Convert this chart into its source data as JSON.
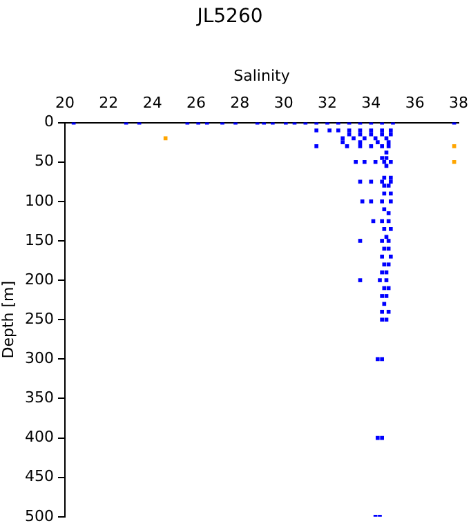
{
  "chart_data": {
    "type": "scatter",
    "title": "JL5260",
    "xlabel": "Salinity",
    "ylabel": "Depth [m]",
    "xlim": [
      20,
      38
    ],
    "xticks": [
      20,
      22,
      24,
      26,
      28,
      30,
      32,
      34,
      36,
      38
    ],
    "ylim": [
      500,
      0
    ],
    "yticks": [
      0,
      50,
      100,
      150,
      200,
      250,
      300,
      350,
      400,
      450,
      500
    ],
    "grid": false,
    "legend": false,
    "marker": "square",
    "series": [
      {
        "color": "#0000ff",
        "x": [
          20.4,
          22.8,
          23.4,
          25.6,
          26.1,
          26.5,
          27.2,
          27.8,
          28.8,
          29.1,
          29.5,
          30.1,
          30.5,
          31.0,
          31.5,
          32.0,
          32.5,
          33.0,
          33.5,
          34.0,
          34.5,
          35.0,
          37.8,
          31.5,
          32.1,
          32.5,
          33.0,
          33.5,
          34.0,
          34.5,
          34.9,
          33.0,
          33.5,
          34.0,
          34.5,
          34.9,
          32.7,
          33.2,
          33.7,
          34.2,
          34.7,
          32.7,
          33.5,
          34.3,
          34.8,
          31.5,
          32.9,
          33.5,
          34.0,
          34.5,
          34.8,
          34.7,
          34.5,
          34.7,
          33.3,
          33.7,
          34.2,
          34.6,
          34.9,
          34.7,
          34.6,
          34.9,
          33.5,
          34.0,
          34.5,
          34.9,
          34.6,
          34.8,
          34.6,
          34.9,
          33.6,
          34.0,
          34.5,
          34.9,
          34.6,
          34.8,
          34.1,
          34.5,
          34.8,
          34.6,
          34.9,
          34.7,
          33.5,
          34.5,
          34.8,
          34.6,
          34.8,
          34.5,
          34.9,
          34.6,
          34.8,
          34.5,
          34.7,
          33.5,
          34.4,
          34.7,
          34.6,
          34.8,
          34.5,
          34.7,
          34.6,
          34.5,
          34.8,
          34.5,
          34.7,
          34.3,
          34.5,
          34.3,
          34.5,
          34.2,
          34.4
        ],
        "values": [
          0,
          0,
          0,
          0,
          0,
          0,
          0,
          0,
          0,
          0,
          0,
          0,
          0,
          0,
          0,
          0,
          0,
          0,
          0,
          0,
          0,
          0,
          0,
          10,
          10,
          10,
          10,
          10,
          10,
          10,
          10,
          15,
          15,
          15,
          15,
          15,
          20,
          20,
          20,
          20,
          20,
          25,
          25,
          25,
          25,
          30,
          30,
          30,
          30,
          30,
          30,
          38,
          45,
          45,
          50,
          50,
          50,
          50,
          50,
          55,
          70,
          70,
          75,
          75,
          75,
          75,
          80,
          80,
          90,
          90,
          100,
          100,
          100,
          100,
          110,
          115,
          125,
          125,
          125,
          135,
          135,
          145,
          150,
          150,
          150,
          160,
          160,
          170,
          170,
          180,
          180,
          190,
          190,
          200,
          200,
          200,
          210,
          210,
          220,
          220,
          230,
          240,
          240,
          250,
          250,
          300,
          300,
          400,
          400,
          500,
          500
        ]
      },
      {
        "color": "#ffa500",
        "x": [
          24.6,
          37.8,
          37.8
        ],
        "values": [
          20,
          30,
          50
        ]
      }
    ]
  }
}
